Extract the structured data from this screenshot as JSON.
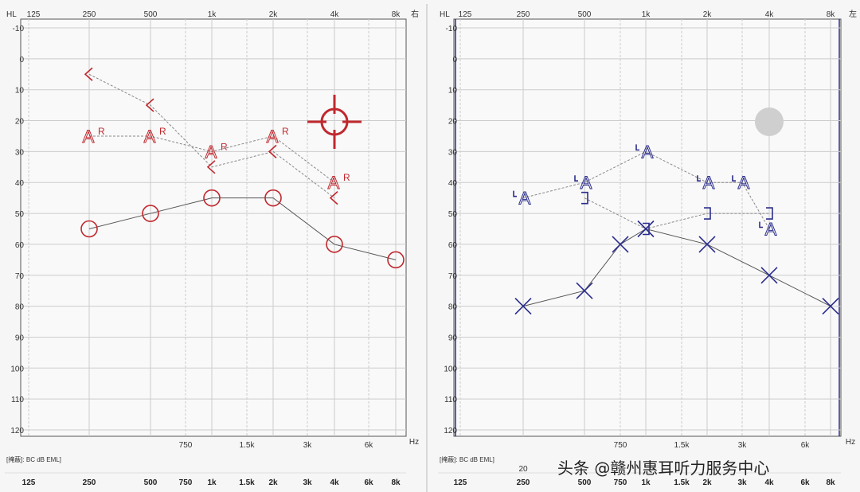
{
  "colors": {
    "right": "#c0282e",
    "left": "#2b2d8c",
    "grid": "#cccccc",
    "wm_dot": "#cfcfcf"
  },
  "chart_data": [
    {
      "type": "line",
      "ear_label": "右",
      "hl_label": "HL",
      "hz_label": "Hz",
      "top_ticks": [
        "125",
        "250",
        "500",
        "1k",
        "2k",
        "4k",
        "8k"
      ],
      "mid_ticks": [
        "750",
        "1.5k",
        "3k",
        "6k"
      ],
      "y_ticks": [
        "-10",
        "0",
        "10",
        "20",
        "30",
        "40",
        "50",
        "60",
        "70",
        "80",
        "90",
        "100",
        "110",
        "120"
      ],
      "footer_note": "[掩蔽]: BC dB EML]",
      "bottom_ticks": [
        "125",
        "250",
        "500",
        "750",
        "1k",
        "1.5k",
        "2k",
        "3k",
        "4k",
        "6k",
        "8k"
      ],
      "ylim": [
        -10,
        120
      ],
      "series": [
        {
          "marker": "bc-masked-R",
          "x": [
            250,
            500,
            1000,
            2000,
            4000
          ],
          "y": [
            25,
            25,
            30,
            25,
            40
          ]
        },
        {
          "marker": "bc-left-bracket",
          "x": [
            250,
            500,
            1000,
            2000,
            4000
          ],
          "y": [
            5,
            15,
            35,
            30,
            45
          ]
        },
        {
          "marker": "circle",
          "x": [
            250,
            500,
            1000,
            2000,
            4000,
            8000
          ],
          "y": [
            55,
            50,
            45,
            45,
            60,
            65
          ]
        }
      ]
    },
    {
      "type": "line",
      "ear_label": "左",
      "hl_label": "HL",
      "hz_label": "Hz",
      "top_ticks": [
        "125",
        "250",
        "500",
        "1k",
        "2k",
        "4k",
        "8k"
      ],
      "mid_ticks": [
        "750",
        "1.5k",
        "3k",
        "6k"
      ],
      "y_ticks": [
        "-10",
        "0",
        "10",
        "20",
        "30",
        "40",
        "50",
        "60",
        "70",
        "80",
        "90",
        "100",
        "110",
        "120"
      ],
      "footer_note": "[掩蔽]: BC dB EML]",
      "extra_label": "20",
      "bottom_ticks": [
        "125",
        "250",
        "500",
        "750",
        "1k",
        "1.5k",
        "2k",
        "3k",
        "4k",
        "6k",
        "8k"
      ],
      "ylim": [
        -10,
        120
      ],
      "series": [
        {
          "marker": "bc-masked-A",
          "x": [
            250,
            500,
            1000,
            2000,
            3000,
            4000
          ],
          "y": [
            45,
            40,
            30,
            40,
            40,
            55
          ]
        },
        {
          "marker": "bc-right-bracket",
          "x": [
            500,
            1000,
            2000,
            4000
          ],
          "y": [
            45,
            55,
            50,
            50
          ]
        },
        {
          "marker": "cross",
          "x": [
            250,
            500,
            750,
            1000,
            2000,
            4000,
            8000
          ],
          "y": [
            80,
            75,
            60,
            55,
            60,
            70,
            80
          ]
        }
      ]
    }
  ],
  "watermark": "头条 @赣州惠耳听力服务中心"
}
